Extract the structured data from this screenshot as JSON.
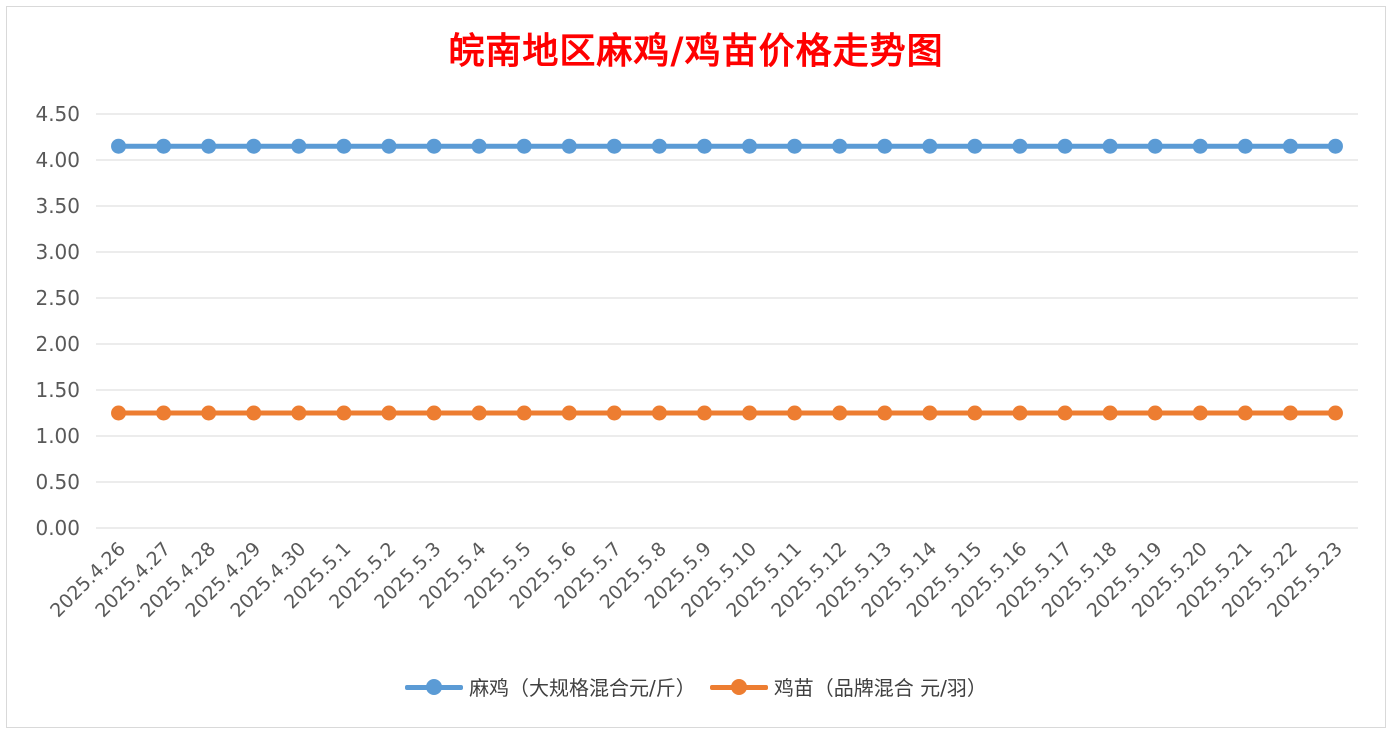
{
  "chart_data": {
    "type": "line",
    "title": "皖南地区麻鸡/鸡苗价格走势图",
    "xlabel": "",
    "ylabel": "",
    "categories": [
      "2025.4.26",
      "2025.4.27",
      "2025.4.28",
      "2025.4.29",
      "2025.4.30",
      "2025.5.1",
      "2025.5.2",
      "2025.5.3",
      "2025.5.4",
      "2025.5.5",
      "2025.5.6",
      "2025.5.7",
      "2025.5.8",
      "2025.5.9",
      "2025.5.10",
      "2025.5.11",
      "2025.5.12",
      "2025.5.13",
      "2025.5.14",
      "2025.5.15",
      "2025.5.16",
      "2025.5.17",
      "2025.5.18",
      "2025.5.19",
      "2025.5.20",
      "2025.5.21",
      "2025.5.22",
      "2025.5.23"
    ],
    "ylim": [
      0,
      4.5
    ],
    "yticks": [
      "0.00",
      "0.50",
      "1.00",
      "1.50",
      "2.00",
      "2.50",
      "3.00",
      "3.50",
      "4.00",
      "4.50"
    ],
    "grid": true,
    "legend_position": "bottom",
    "series": [
      {
        "name": "麻鸡（大规格混合元/斤）",
        "color": "#5b9bd5",
        "values": [
          4.15,
          4.15,
          4.15,
          4.15,
          4.15,
          4.15,
          4.15,
          4.15,
          4.15,
          4.15,
          4.15,
          4.15,
          4.15,
          4.15,
          4.15,
          4.15,
          4.15,
          4.15,
          4.15,
          4.15,
          4.15,
          4.15,
          4.15,
          4.15,
          4.15,
          4.15,
          4.15,
          4.15
        ]
      },
      {
        "name": "鸡苗（品牌混合 元/羽）",
        "color": "#ed7d31",
        "values": [
          1.25,
          1.25,
          1.25,
          1.25,
          1.25,
          1.25,
          1.25,
          1.25,
          1.25,
          1.25,
          1.25,
          1.25,
          1.25,
          1.25,
          1.25,
          1.25,
          1.25,
          1.25,
          1.25,
          1.25,
          1.25,
          1.25,
          1.25,
          1.25,
          1.25,
          1.25,
          1.25,
          1.25
        ]
      }
    ]
  }
}
